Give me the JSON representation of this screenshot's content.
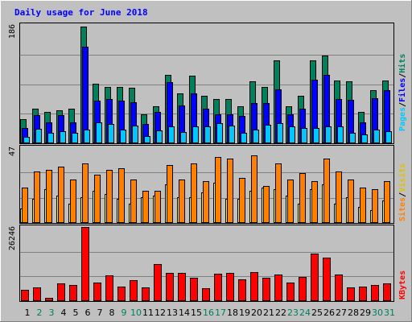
{
  "title": "Daily usage for June 2018",
  "colors": {
    "background": "#C0C0C0",
    "title": "#0000FF",
    "gridline": "#808080",
    "hits": "#00805C",
    "files": "#0000FF",
    "pages": "#00C8FF",
    "visits": "#FFFF00",
    "sites": "#FF8000",
    "kbytes": "#FF0000",
    "day_weekday": "#000000",
    "day_weekend": "#00805C"
  },
  "chart_data": [
    {
      "type": "bar",
      "panel": "hits-files-pages",
      "ymax_label": "186",
      "ylim": [
        0,
        186
      ],
      "side_labels": [
        "Pages",
        "Files",
        "Hits"
      ],
      "series": [
        {
          "name": "Hits",
          "values": [
            38,
            54,
            49,
            52,
            54,
            184,
            94,
            88,
            88,
            87,
            46,
            58,
            108,
            79,
            106,
            75,
            69,
            70,
            58,
            98,
            89,
            130,
            58,
            75,
            130,
            138,
            99,
            98,
            49,
            83,
            99
          ]
        },
        {
          "name": "Files",
          "values": [
            24,
            44,
            33,
            44,
            33,
            152,
            67,
            70,
            67,
            64,
            30,
            49,
            96,
            59,
            79,
            55,
            46,
            46,
            43,
            63,
            63,
            85,
            46,
            55,
            100,
            107,
            69,
            68,
            33,
            71,
            83
          ]
        },
        {
          "name": "Pages",
          "values": [
            10,
            23,
            17,
            19,
            17,
            22,
            33,
            30,
            22,
            28,
            12,
            20,
            27,
            18,
            26,
            27,
            32,
            28,
            17,
            22,
            29,
            32,
            26,
            24,
            24,
            26,
            26,
            16,
            14,
            21,
            19
          ]
        }
      ]
    },
    {
      "type": "bar",
      "panel": "visits-sites",
      "ymax_label": "47",
      "ylim": [
        0,
        47
      ],
      "side_labels": [
        "Sites",
        "Visits"
      ],
      "series": [
        {
          "name": "Visits",
          "values": [
            9,
            15,
            21,
            17,
            12,
            16,
            20,
            18,
            15,
            12,
            16,
            17,
            24,
            16,
            16,
            19,
            25,
            15,
            15,
            20,
            22,
            21,
            17,
            12,
            21,
            24,
            12,
            16,
            10,
            8,
            14
          ]
        },
        {
          "name": "Sites",
          "values": [
            22,
            32,
            33,
            35,
            27,
            37,
            30,
            33,
            34,
            27,
            20,
            20,
            36,
            27,
            37,
            26,
            41,
            40,
            28,
            42,
            23,
            37,
            27,
            31,
            26,
            40,
            32,
            27,
            22,
            21,
            26
          ]
        }
      ]
    },
    {
      "type": "bar",
      "panel": "kbytes",
      "ymax_label": "26246",
      "ylim": [
        0,
        26246
      ],
      "side_labels": [
        "KBytes"
      ],
      "series": [
        {
          "name": "KBytes",
          "values": [
            4100,
            4900,
            1200,
            6300,
            5700,
            26246,
            6700,
            9000,
            5200,
            7500,
            4800,
            13100,
            10000,
            9900,
            8300,
            4500,
            9600,
            10100,
            7700,
            10400,
            8200,
            9300,
            6700,
            8600,
            16700,
            15500,
            9300,
            4900,
            5200,
            5800,
            6200
          ]
        }
      ]
    }
  ],
  "days": [
    "1",
    "2",
    "3",
    "4",
    "5",
    "6",
    "7",
    "8",
    "9",
    "10",
    "11",
    "12",
    "13",
    "14",
    "15",
    "16",
    "17",
    "18",
    "19",
    "20",
    "21",
    "22",
    "23",
    "24",
    "25",
    "26",
    "27",
    "28",
    "29",
    "30",
    "31"
  ],
  "weekend_days": [
    "2",
    "3",
    "9",
    "10",
    "16",
    "17",
    "23",
    "24",
    "30",
    "31"
  ]
}
